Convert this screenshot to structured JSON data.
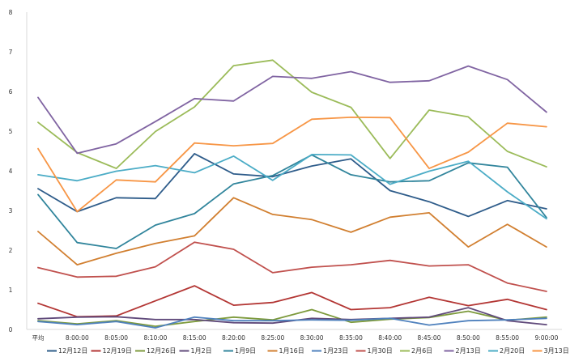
{
  "chart_data": {
    "type": "line",
    "title": "",
    "xlabel": "",
    "ylabel": "",
    "ylim": [
      0,
      8
    ],
    "yticks": [
      0,
      1,
      2,
      3,
      4,
      5,
      6,
      7,
      8
    ],
    "grid": false,
    "legend_position": "bottom",
    "categories": [
      "平均",
      "8:00:00",
      "8:05:00",
      "8:10:00",
      "8:15:00",
      "8:20:00",
      "8:25:00",
      "8:30:00",
      "8:35:00",
      "8:40:00",
      "8:45:00",
      "8:50:00",
      "8:55:00",
      "9:00:00"
    ],
    "x_tick_labels": [
      "平均",
      "8:00:00",
      "8:05:00",
      "8:10:00",
      "8:15:00",
      "8:20:00",
      "8:25:00",
      "8:30:00",
      "8:35:00",
      "8:40:00",
      "8:45:00",
      "8:50:00",
      "8:55:00",
      "9:00:00"
    ],
    "series": [
      {
        "name": "12月12日",
        "color": "#2e5c8a",
        "values": [
          3.55,
          2.97,
          3.32,
          3.3,
          4.43,
          3.92,
          3.85,
          4.12,
          4.3,
          3.5,
          3.22,
          2.85,
          3.25,
          3.04
        ]
      },
      {
        "name": "12月19日",
        "color": "#b33634",
        "values": [
          0.66,
          0.32,
          0.34,
          0.72,
          1.1,
          0.61,
          0.68,
          0.93,
          0.5,
          0.55,
          0.81,
          0.6,
          0.76,
          0.5
        ]
      },
      {
        "name": "12月26日",
        "color": "#7d9a3c",
        "values": [
          0.22,
          0.14,
          0.22,
          0.08,
          0.2,
          0.31,
          0.24,
          0.5,
          0.18,
          0.26,
          0.3,
          0.46,
          0.23,
          0.31
        ]
      },
      {
        "name": "1月2日",
        "color": "#604a7b",
        "values": [
          0.27,
          0.31,
          0.32,
          0.25,
          0.25,
          0.17,
          0.16,
          0.28,
          0.25,
          0.28,
          0.31,
          0.55,
          0.22,
          0.12
        ]
      },
      {
        "name": "1月9日",
        "color": "#31859c",
        "values": [
          3.4,
          2.19,
          2.04,
          2.63,
          2.92,
          3.67,
          3.88,
          4.4,
          3.9,
          3.72,
          3.75,
          4.2,
          4.09,
          2.82
        ]
      },
      {
        "name": "1月16日",
        "color": "#d17f30",
        "values": [
          2.47,
          1.63,
          1.92,
          2.17,
          2.36,
          3.32,
          2.9,
          2.77,
          2.45,
          2.83,
          2.94,
          2.08,
          2.65,
          2.08
        ]
      },
      {
        "name": "1月23日",
        "color": "#4f81bd",
        "values": [
          0.2,
          0.12,
          0.2,
          0.04,
          0.31,
          0.22,
          0.22,
          0.24,
          0.23,
          0.28,
          0.11,
          0.22,
          0.24,
          0.28
        ]
      },
      {
        "name": "1月30日",
        "color": "#c0504d",
        "values": [
          1.56,
          1.32,
          1.34,
          1.58,
          2.2,
          2.02,
          1.43,
          1.57,
          1.63,
          1.74,
          1.6,
          1.63,
          1.17,
          0.96
        ]
      },
      {
        "name": "2月6日",
        "color": "#9bbb59",
        "values": [
          5.22,
          4.46,
          4.06,
          4.99,
          5.61,
          6.65,
          6.79,
          5.98,
          5.6,
          4.31,
          5.53,
          5.36,
          4.49,
          4.1
        ]
      },
      {
        "name": "2月13日",
        "color": "#8064a2",
        "values": [
          5.85,
          4.44,
          4.68,
          5.24,
          5.82,
          5.76,
          6.38,
          6.33,
          6.5,
          6.23,
          6.27,
          6.64,
          6.3,
          5.48
        ]
      },
      {
        "name": "2月20日",
        "color": "#4bacc6",
        "values": [
          3.9,
          3.75,
          3.99,
          4.13,
          3.95,
          4.37,
          3.76,
          4.41,
          4.4,
          3.66,
          3.99,
          4.24,
          3.47,
          2.79
        ]
      },
      {
        "name": "3月13日",
        "color": "#f79646",
        "values": [
          4.56,
          2.97,
          3.77,
          3.72,
          4.7,
          4.63,
          4.69,
          5.3,
          5.35,
          5.34,
          4.06,
          4.47,
          5.2,
          5.11
        ]
      }
    ]
  }
}
